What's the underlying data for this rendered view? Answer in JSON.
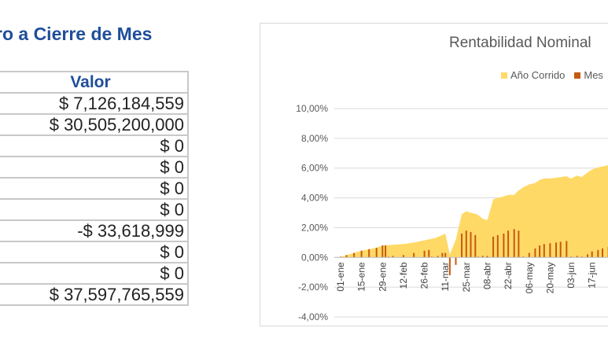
{
  "table": {
    "title": "ro a Cierre de Mes",
    "header": "Valor",
    "rows": [
      "$ 7,126,184,559",
      "$ 30,505,200,000",
      "$ 0",
      "$ 0",
      "$ 0",
      "$ 0",
      "-$ 33,618,999",
      "$ 0",
      "$ 0",
      "$ 37,597,765,559"
    ]
  },
  "colors": {
    "year": "#ffd966",
    "month": "#c55a11",
    "title_blue": "#1f4e9a"
  },
  "chart_data": {
    "type": "area",
    "title": "Rentabilidad Nominal",
    "legend": [
      "Año Corrido",
      "Mes"
    ],
    "legend_position": "top",
    "grid": true,
    "ylim": [
      -4,
      10
    ],
    "y_ticks": [
      "10,00%",
      "8,00%",
      "6,00%",
      "4,00%",
      "2,00%",
      "0,00%",
      "-2,00%",
      "-4,00%"
    ],
    "x_ticks": [
      "01-ene",
      "15-ene",
      "29-ene",
      "12-feb",
      "26-feb",
      "11-mar",
      "25-mar",
      "08-abr",
      "22-abr",
      "06-may",
      "20-may",
      "03-jun",
      "17-jun"
    ],
    "series": [
      {
        "name": "Año Corrido",
        "x": [
          "01-ene",
          "05-ene",
          "10-ene",
          "15-ene",
          "20-ene",
          "25-ene",
          "29-ene",
          "05-feb",
          "12-feb",
          "19-feb",
          "26-feb",
          "04-mar",
          "09-mar",
          "11-mar",
          "14-mar",
          "18-mar",
          "22-mar",
          "25-mar",
          "28-mar",
          "01-abr",
          "05-abr",
          "08-abr",
          "12-abr",
          "15-abr",
          "19-abr",
          "22-abr",
          "26-abr",
          "29-abr",
          "02-may",
          "06-may",
          "10-may",
          "13-may",
          "16-may",
          "20-may",
          "24-may",
          "27-may",
          "31-may",
          "03-jun",
          "07-jun",
          "10-jun",
          "14-jun",
          "17-jun",
          "21-jun",
          "24-jun",
          "28-jun"
        ],
        "values": [
          0.05,
          0.15,
          0.3,
          0.45,
          0.55,
          0.65,
          0.8,
          0.85,
          0.9,
          1.0,
          1.15,
          1.3,
          1.5,
          1.6,
          0.2,
          1.2,
          2.9,
          3.1,
          3.0,
          2.9,
          2.6,
          2.5,
          3.9,
          4.0,
          4.1,
          4.2,
          4.2,
          4.5,
          4.7,
          4.9,
          5.0,
          5.2,
          5.3,
          5.3,
          5.35,
          5.4,
          5.45,
          5.3,
          5.5,
          5.4,
          5.7,
          5.9,
          6.05,
          6.1,
          6.2
        ]
      },
      {
        "name": "Mes",
        "x": [
          "01-ene",
          "05-ene",
          "10-ene",
          "15-ene",
          "20-ene",
          "25-ene",
          "29-ene",
          "31-ene",
          "02-feb",
          "05-feb",
          "12-feb",
          "19-feb",
          "26-feb",
          "29-feb",
          "02-mar",
          "06-mar",
          "09-mar",
          "11-mar",
          "14-mar",
          "18-mar",
          "22-mar",
          "25-mar",
          "28-mar",
          "31-mar",
          "02-abr",
          "05-abr",
          "08-abr",
          "12-abr",
          "15-abr",
          "19-abr",
          "22-abr",
          "26-abr",
          "29-abr",
          "02-may",
          "06-may",
          "10-may",
          "13-may",
          "16-may",
          "20-may",
          "24-may",
          "27-may",
          "31-may",
          "03-jun",
          "07-jun",
          "10-jun",
          "14-jun",
          "17-jun",
          "21-jun",
          "24-jun",
          "28-jun"
        ],
        "values": [
          0.05,
          0.15,
          0.3,
          0.45,
          0.55,
          0.65,
          0.8,
          0.8,
          0.05,
          0.1,
          0.15,
          0.3,
          0.45,
          0.5,
          0.05,
          0.1,
          0.3,
          0.3,
          -1.2,
          -0.5,
          1.6,
          1.8,
          1.7,
          1.5,
          0.05,
          0.1,
          0.1,
          1.4,
          1.5,
          1.6,
          1.8,
          1.9,
          1.8,
          0.05,
          0.3,
          0.6,
          0.8,
          0.9,
          0.95,
          1.0,
          1.05,
          1.1,
          0.05,
          0.1,
          0.05,
          0.2,
          0.4,
          0.5,
          0.6,
          0.7
        ]
      }
    ]
  }
}
